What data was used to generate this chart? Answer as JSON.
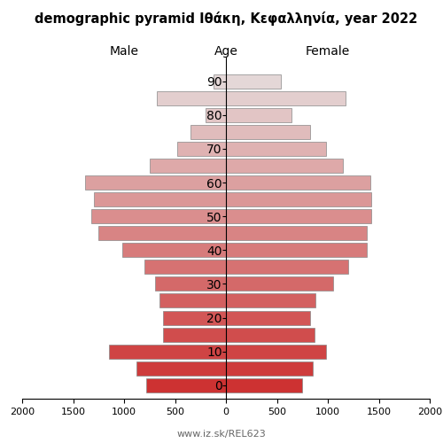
{
  "title": "demographic pyramid Ιθάκη, Κεφαλληνία, year 2022",
  "xlabel_male": "Male",
  "xlabel_female": "Female",
  "xlabel_age": "Age",
  "footer": "www.iz.sk/REL623",
  "age_groups": [
    0,
    5,
    10,
    15,
    20,
    25,
    30,
    35,
    40,
    45,
    50,
    55,
    60,
    65,
    70,
    75,
    80,
    85,
    90
  ],
  "male": [
    780,
    880,
    1150,
    620,
    620,
    650,
    700,
    800,
    1020,
    1250,
    1320,
    1300,
    1380,
    750,
    480,
    350,
    200,
    680,
    120
  ],
  "female": [
    750,
    850,
    980,
    870,
    830,
    880,
    1050,
    1200,
    1380,
    1380,
    1430,
    1430,
    1420,
    1150,
    980,
    830,
    640,
    1170,
    540
  ],
  "xlim": 2000,
  "background_color": "#ffffff",
  "bar_edge_color": "#888888",
  "bar_linewidth": 0.5,
  "age_tick_every_10": [
    0,
    10,
    20,
    30,
    40,
    50,
    60,
    70,
    80,
    90
  ]
}
